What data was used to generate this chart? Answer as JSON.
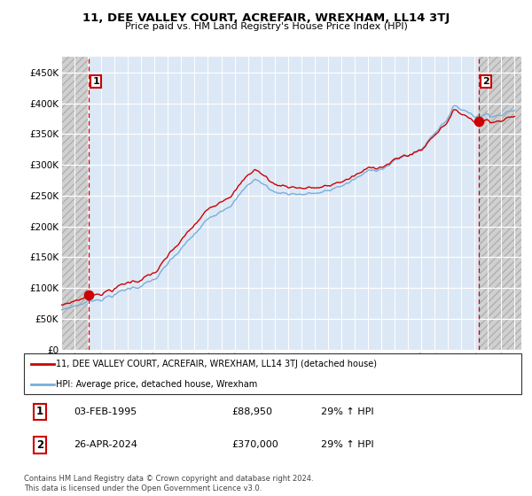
{
  "title": "11, DEE VALLEY COURT, ACREFAIR, WREXHAM, LL14 3TJ",
  "subtitle": "Price paid vs. HM Land Registry's House Price Index (HPI)",
  "xlim_start": 1993.0,
  "xlim_end": 2027.5,
  "ylim": [
    0,
    475000
  ],
  "yticks": [
    0,
    50000,
    100000,
    150000,
    200000,
    250000,
    300000,
    350000,
    400000,
    450000
  ],
  "ytick_labels": [
    "£0",
    "£50K",
    "£100K",
    "£150K",
    "£200K",
    "£250K",
    "£300K",
    "£350K",
    "£400K",
    "£450K"
  ],
  "sale1_x": 1995.09,
  "sale1_y": 88950,
  "sale2_x": 2024.32,
  "sale2_y": 370000,
  "marker_color": "#cc0000",
  "line_color": "#cc0000",
  "hpi_color": "#7aaddc",
  "legend_line1": "11, DEE VALLEY COURT, ACREFAIR, WREXHAM, LL14 3TJ (detached house)",
  "legend_line2": "HPI: Average price, detached house, Wrexham",
  "annotation1_label": "1",
  "annotation2_label": "2",
  "table_row1": [
    "1",
    "03-FEB-1995",
    "£88,950",
    "29% ↑ HPI"
  ],
  "table_row2": [
    "2",
    "26-APR-2024",
    "£370,000",
    "29% ↑ HPI"
  ],
  "footer": "Contains HM Land Registry data © Crown copyright and database right 2024.\nThis data is licensed under the Open Government Licence v3.0."
}
